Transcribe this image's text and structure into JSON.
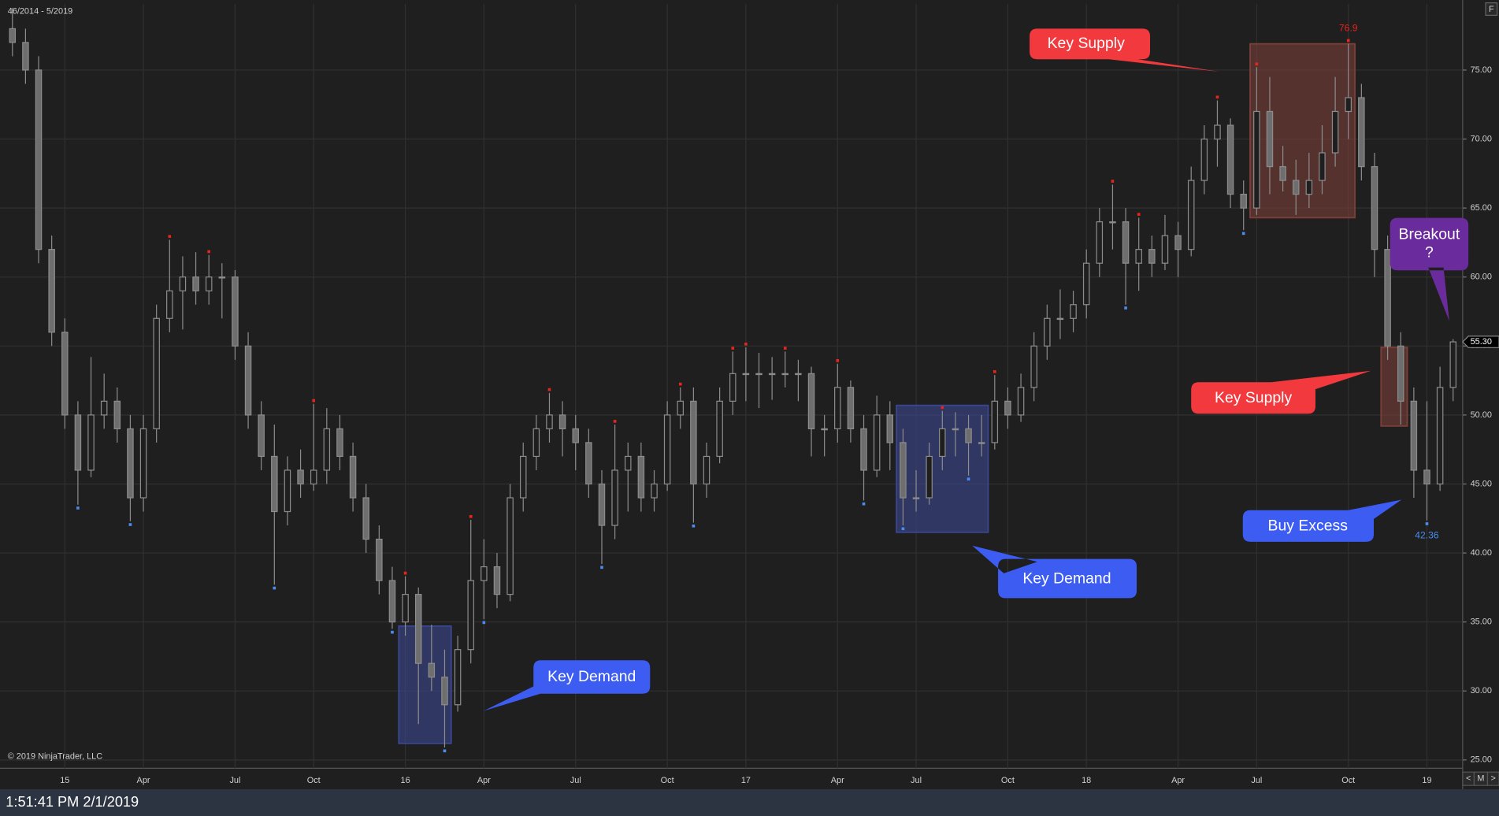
{
  "header": {
    "range": "46/2014 - 5/2019",
    "corner": "F"
  },
  "copyright": "© 2019 NinjaTrader, LLC",
  "status": {
    "time": "1:51:41 PM 2/1/2019"
  },
  "nav": [
    "<",
    "M",
    ">"
  ],
  "callouts": [
    "Key Supply",
    "Key Supply",
    "Key Demand",
    "Key Demand",
    "Buy Excess"
  ],
  "breakout_callout": [
    "Breakout",
    "?"
  ],
  "chart_data": {
    "type": "candlestick",
    "categories": [
      null,
      null,
      null,
      null,
      "15",
      null,
      null,
      null,
      null,
      null,
      "Apr",
      null,
      null,
      null,
      null,
      null,
      null,
      "Jul",
      null,
      null,
      null,
      null,
      null,
      "Oct",
      null,
      null,
      null,
      null,
      null,
      null,
      "16",
      null,
      null,
      null,
      null,
      null,
      "Apr",
      null,
      null,
      null,
      null,
      null,
      null,
      "Jul",
      null,
      null,
      null,
      null,
      null,
      null,
      "Oct",
      null,
      null,
      null,
      null,
      null,
      "17",
      null,
      null,
      null,
      null,
      null,
      null,
      "Apr",
      null,
      null,
      null,
      null,
      null,
      "Jul",
      null,
      null,
      null,
      null,
      null,
      null,
      "Oct",
      null,
      null,
      null,
      null,
      null,
      "18",
      null,
      null,
      null,
      null,
      null,
      null,
      "Apr",
      null,
      null,
      null,
      null,
      null,
      "Jul",
      null,
      null,
      null,
      null,
      null,
      null,
      "Oct",
      null,
      null,
      null,
      null,
      null,
      "19",
      null,
      null
    ],
    "open": [
      78,
      77,
      75,
      62,
      56,
      50,
      46,
      50,
      51,
      49,
      44,
      49,
      57,
      59,
      60,
      59,
      60,
      60,
      55,
      50,
      47,
      43,
      46,
      45,
      46,
      49,
      47,
      44,
      41,
      38,
      35,
      37,
      32,
      31,
      29,
      33,
      38,
      39,
      37,
      44,
      47,
      49,
      50,
      49,
      48,
      45,
      42,
      46,
      47,
      44,
      45,
      50,
      51,
      45,
      47,
      51,
      53,
      53,
      53,
      53,
      53,
      53,
      49,
      49,
      52,
      49,
      46,
      50,
      48,
      44,
      44,
      47,
      49,
      49,
      48,
      48,
      51,
      50,
      52,
      55,
      57,
      57,
      58,
      61,
      64,
      64,
      61,
      62,
      61,
      63,
      62,
      67,
      70,
      71,
      66,
      65,
      72,
      68,
      67,
      66,
      67,
      69,
      72,
      73,
      68,
      62,
      55,
      51,
      46,
      45,
      52
    ],
    "high": [
      79.5,
      78,
      76,
      63,
      57,
      51,
      54.2,
      53,
      52,
      50,
      50,
      58,
      62.7,
      61.5,
      61.8,
      61.6,
      61,
      60.5,
      56,
      51,
      49.3,
      47,
      47.5,
      50.8,
      50.5,
      50,
      48,
      45,
      42,
      39,
      38.3,
      37.5,
      34.8,
      33,
      34,
      42.4,
      41,
      40,
      45,
      48,
      50,
      51.6,
      51,
      50,
      49,
      46,
      49.3,
      48,
      48,
      46,
      51,
      52,
      52,
      48,
      52,
      54.6,
      54.9,
      54.5,
      54.2,
      54.6,
      54,
      53.5,
      50,
      53.7,
      52.5,
      50,
      51.4,
      51,
      49,
      46,
      48,
      50.3,
      50.2,
      50,
      50,
      52.9,
      52,
      53,
      56,
      58,
      59.1,
      59,
      62,
      65,
      66.7,
      65,
      64.3,
      63,
      64.5,
      64,
      68,
      71,
      72.8,
      71.5,
      67,
      75.2,
      74.5,
      69.5,
      68.5,
      69,
      71,
      74.5,
      76.9,
      74,
      69,
      63,
      56,
      52,
      51,
      53.5,
      55.5
    ],
    "low": [
      76,
      74,
      61,
      55,
      49,
      43.5,
      45.5,
      49,
      48,
      42.3,
      43,
      48,
      56,
      56.2,
      58,
      58,
      57,
      54,
      49,
      46,
      37.7,
      42,
      44,
      44.5,
      45,
      46,
      43,
      40,
      37,
      34.5,
      34,
      27.6,
      30,
      25.9,
      28.5,
      32,
      35.2,
      36,
      36.5,
      43,
      46,
      48,
      47,
      46,
      44,
      39.2,
      41,
      43,
      43,
      43,
      44.5,
      49,
      42.2,
      44,
      46.5,
      50,
      51,
      50.5,
      51.1,
      52,
      51,
      47,
      47,
      48,
      48,
      43.8,
      45.5,
      46,
      42,
      43,
      43.5,
      46,
      47,
      45.6,
      47,
      47.5,
      49,
      49.5,
      51,
      54,
      55.5,
      56,
      57,
      60,
      62,
      58,
      59,
      60,
      60.5,
      60,
      61.5,
      66,
      68,
      65,
      63.4,
      64.5,
      66,
      66.2,
      64.5,
      65,
      66,
      68,
      70,
      67,
      60,
      54,
      49.3,
      44,
      42.36,
      44.5,
      51
    ],
    "close": [
      77,
      75,
      62,
      56,
      50,
      46,
      50,
      51,
      49,
      44,
      49,
      57,
      59,
      60,
      59,
      60,
      60,
      55,
      50,
      47,
      43,
      46,
      45,
      46,
      49,
      47,
      44,
      41,
      38,
      35,
      37,
      32,
      31,
      29,
      33,
      38,
      39,
      37,
      44,
      47,
      49,
      50,
      49,
      48,
      45,
      42,
      46,
      47,
      44,
      45,
      50,
      51,
      45,
      47,
      51,
      53,
      53,
      53,
      53,
      53,
      53,
      49,
      49,
      52,
      49,
      46,
      50,
      48,
      44,
      44,
      47,
      49,
      49,
      48,
      48,
      51,
      50,
      52,
      55,
      57,
      57,
      58,
      61,
      64,
      64,
      61,
      62,
      61,
      63,
      62,
      67,
      70,
      71,
      66,
      65,
      72,
      68,
      67,
      66,
      67,
      69,
      72,
      73,
      68,
      62,
      55,
      51,
      46,
      45,
      52,
      55.3
    ],
    "up_color": "#1f1f1f",
    "down_color": "#6e6e6e",
    "wick_color": "#8c8c8c",
    "pivot_highs": [
      12,
      15,
      23,
      30,
      35,
      41,
      46,
      51,
      55,
      56,
      59,
      63,
      71,
      75,
      84,
      86,
      92,
      95,
      102
    ],
    "pivot_lows": [
      5,
      9,
      20,
      29,
      33,
      36,
      45,
      52,
      65,
      68,
      73,
      85,
      94,
      108
    ],
    "pivot_high_color": "#e8241c",
    "pivot_low_color": "#4a8cf0",
    "zones": [
      {
        "from": 30,
        "to": 33,
        "low": 26.2,
        "high": 34.7,
        "color": "#3a4790"
      },
      {
        "from": 68,
        "to": 74,
        "low": 41.5,
        "high": 50.7,
        "color": "#3a4790"
      },
      {
        "from": 95,
        "to": 102,
        "low": 64.3,
        "high": 76.9,
        "color": "#7a4038"
      },
      {
        "from": 105,
        "to": 106,
        "low": 49.2,
        "high": 54.9,
        "color": "#7a4038"
      }
    ],
    "annotations": [
      {
        "index": 102,
        "value": 76.9,
        "color": "#e8241c",
        "at": "high"
      },
      {
        "index": 108,
        "value": 42.36,
        "color": "#4a8cf0",
        "at": "low"
      }
    ],
    "last_price": {
      "value": 55.3,
      "label": "55.30"
    },
    "ylim": [
      24.4,
      79.8
    ],
    "yticks": [
      {
        "value": 25,
        "label": "25.00"
      },
      {
        "value": 30,
        "label": "30.00"
      },
      {
        "value": 35,
        "label": "35.00"
      },
      {
        "value": 40,
        "label": "40.00"
      },
      {
        "value": 45,
        "label": "45.00"
      },
      {
        "value": 50,
        "label": "50.00"
      },
      {
        "value": 55,
        "label": "55.00"
      },
      {
        "value": 60,
        "label": "60.00"
      },
      {
        "value": 65,
        "label": "65.00"
      },
      {
        "value": 70,
        "label": "70.00"
      },
      {
        "value": 75,
        "label": "75.00"
      }
    ],
    "grid": true
  }
}
